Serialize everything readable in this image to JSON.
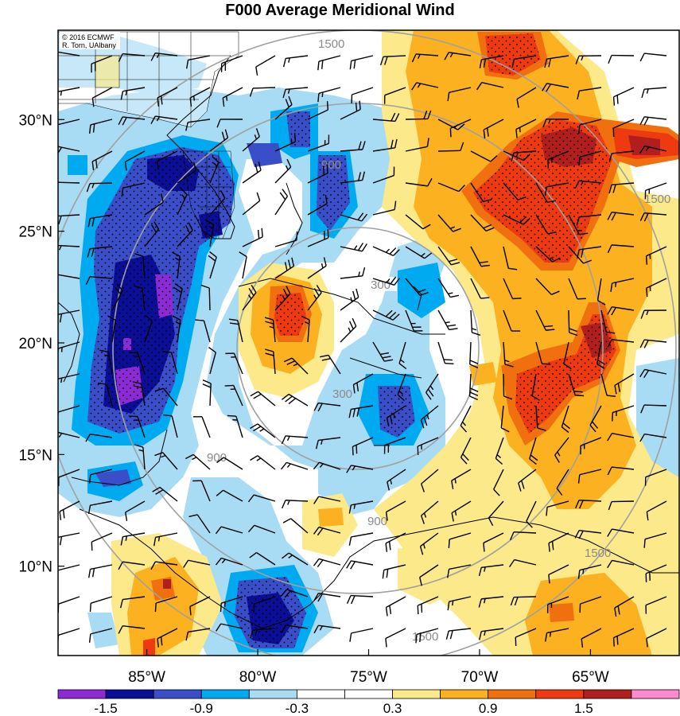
{
  "title": "F000 Average Meridional Wind",
  "credit": {
    "line1": "© 2016 ECMWF",
    "line2": "R. Torn, UAlbany"
  },
  "map": {
    "lon_range": [
      -89,
      -61
    ],
    "lat_range": [
      6,
      34
    ],
    "lon_ticks": [
      {
        "value": -85,
        "label": "85°W"
      },
      {
        "value": -80,
        "label": "80°W"
      },
      {
        "value": -75,
        "label": "75°W"
      },
      {
        "value": -70,
        "label": "70°W"
      },
      {
        "value": -65,
        "label": "65°W"
      }
    ],
    "lat_ticks": [
      {
        "value": 30,
        "label": "30°N"
      },
      {
        "value": 25,
        "label": "25°N"
      },
      {
        "value": 20,
        "label": "20°N"
      },
      {
        "value": 15,
        "label": "15°N"
      },
      {
        "value": 10,
        "label": "10°N"
      }
    ],
    "range_rings": {
      "center_lon": -74.5,
      "center_lat": 20.2,
      "labels": [
        "300",
        "900",
        "1500"
      ]
    }
  },
  "colorbar": {
    "colors": [
      "#8c2bd6",
      "#0a0f96",
      "#3a4ec8",
      "#00aaf0",
      "#a8dcf5",
      "#ffffff",
      "#ffffff",
      "#fbe98a",
      "#fbb120",
      "#f07010",
      "#ee3a10",
      "#b01e1e",
      "#ff8ad0"
    ],
    "labels": [
      "-1.5",
      "-0.9",
      "-0.3",
      "0.3",
      "0.9",
      "1.5"
    ]
  }
}
